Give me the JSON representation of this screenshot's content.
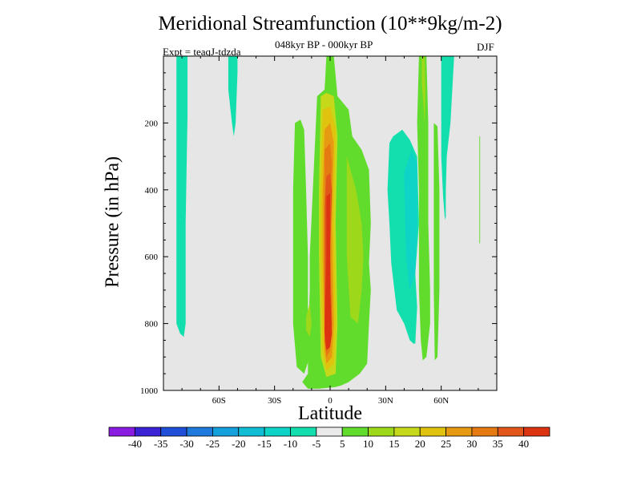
{
  "chart_data": {
    "type": "heatmap",
    "title": "Meridional Streamfunction (10**9kg/m-2)",
    "subtitle": "048kyr BP - 000kyr BP",
    "experiment": "Expt = teaqJ-tdzda",
    "season": "DJF",
    "xlabel": "Latitude",
    "ylabel": "Pressure (in hPa)",
    "xlim": [
      -90,
      90
    ],
    "ylim": [
      1000,
      0
    ],
    "x_ticks": [
      {
        "value": -60,
        "label": "60S"
      },
      {
        "value": -30,
        "label": "30S"
      },
      {
        "value": 0,
        "label": "0"
      },
      {
        "value": 30,
        "label": "30N"
      },
      {
        "value": 60,
        "label": "60N"
      }
    ],
    "y_ticks": [
      {
        "value": 200,
        "label": "200"
      },
      {
        "value": 400,
        "label": "400"
      },
      {
        "value": 600,
        "label": "600"
      },
      {
        "value": 800,
        "label": "800"
      },
      {
        "value": 1000,
        "label": "1000"
      }
    ],
    "background_color": "#e6e6e6",
    "colorbar": {
      "levels": [
        "-40",
        "-35",
        "-30",
        "-25",
        "-20",
        "-15",
        "-10",
        "-5",
        "5",
        "10",
        "15",
        "20",
        "25",
        "30",
        "35",
        "40"
      ],
      "colors": [
        "#8a1be0",
        "#3b22d4",
        "#1f4fd8",
        "#1d79dc",
        "#14a0dc",
        "#10bdd4",
        "#0ed3c7",
        "#13dfae",
        "#eaeaea",
        "#62dc2c",
        "#9ed81a",
        "#c6d81a",
        "#dfc30e",
        "#e59a12",
        "#e57a12",
        "#e2561a",
        "#dc3311"
      ]
    },
    "contour_regions": [
      {
        "level_index": 7,
        "polygon": [
          [
            -83,
            0
          ],
          [
            -77,
            0
          ],
          [
            -77,
            180
          ],
          [
            -78,
            500
          ],
          [
            -78,
            800
          ],
          [
            -79,
            840
          ],
          [
            -81,
            830
          ],
          [
            -83,
            800
          ],
          [
            -83,
            400
          ]
        ]
      },
      {
        "level_index": 7,
        "polygon": [
          [
            -55,
            0
          ],
          [
            -50,
            0
          ],
          [
            -50,
            50
          ],
          [
            -51,
            200
          ],
          [
            -52,
            240
          ],
          [
            -53,
            200
          ],
          [
            -55,
            100
          ]
        ]
      },
      {
        "level_index": 9,
        "polygon": [
          [
            -19,
            200
          ],
          [
            -16,
            190
          ],
          [
            -14,
            220
          ],
          [
            -13,
            400
          ],
          [
            -12,
            600
          ],
          [
            -12,
            800
          ],
          [
            -11,
            900
          ],
          [
            -14,
            950
          ],
          [
            -18,
            930
          ],
          [
            -20,
            800
          ],
          [
            -20,
            400
          ]
        ]
      },
      {
        "level_index": 9,
        "polygon": [
          [
            -2,
            0
          ],
          [
            2,
            0
          ],
          [
            4,
            120
          ],
          [
            10,
            160
          ],
          [
            12,
            240
          ],
          [
            17,
            280
          ],
          [
            21,
            340
          ],
          [
            22,
            500
          ],
          [
            21,
            620
          ],
          [
            22,
            700
          ],
          [
            21,
            800
          ],
          [
            20,
            920
          ],
          [
            16,
            950
          ],
          [
            10,
            975
          ],
          [
            6,
            985
          ],
          [
            3,
            990
          ],
          [
            -6,
            995
          ],
          [
            -12,
            995
          ],
          [
            -15,
            975
          ],
          [
            -12,
            950
          ],
          [
            -12,
            850
          ],
          [
            -11,
            700
          ],
          [
            -11,
            600
          ],
          [
            -7,
            120
          ],
          [
            -3,
            100
          ]
        ]
      },
      {
        "level_index": 10,
        "polygon": [
          [
            -13,
            780
          ],
          [
            -11,
            740
          ],
          [
            -10,
            800
          ],
          [
            -11,
            840
          ],
          [
            -13,
            820
          ]
        ]
      },
      {
        "level_index": 10,
        "polygon": [
          [
            9,
            300
          ],
          [
            14,
            400
          ],
          [
            17,
            500
          ],
          [
            18,
            600
          ],
          [
            17,
            700
          ],
          [
            15,
            800
          ],
          [
            11,
            780
          ],
          [
            9,
            600
          ]
        ]
      },
      {
        "level_index": 11,
        "polygon": [
          [
            -5,
            120
          ],
          [
            -2,
            110
          ],
          [
            2,
            120
          ],
          [
            4,
            240
          ],
          [
            3,
            500
          ],
          [
            4,
            800
          ],
          [
            3,
            950
          ],
          [
            -2,
            960
          ],
          [
            -5,
            900
          ],
          [
            -6,
            600
          ],
          [
            -6,
            400
          ]
        ]
      },
      {
        "level_index": 12,
        "polygon": [
          [
            -4,
            160
          ],
          [
            0,
            150
          ],
          [
            3,
            220
          ],
          [
            2,
            500
          ],
          [
            3,
            800
          ],
          [
            2,
            920
          ],
          [
            -2,
            940
          ],
          [
            -4,
            880
          ],
          [
            -5,
            600
          ],
          [
            -5,
            400
          ]
        ]
      },
      {
        "level_index": 13,
        "polygon": [
          [
            -3,
            220
          ],
          [
            0,
            200
          ],
          [
            2,
            260
          ],
          [
            1,
            500
          ],
          [
            2,
            800
          ],
          [
            1,
            900
          ],
          [
            -2,
            920
          ],
          [
            -3,
            880
          ],
          [
            -4,
            600
          ],
          [
            -4,
            400
          ]
        ]
      },
      {
        "level_index": 14,
        "polygon": [
          [
            -3,
            280
          ],
          [
            0,
            260
          ],
          [
            1,
            320
          ],
          [
            0,
            500
          ],
          [
            1,
            800
          ],
          [
            0,
            880
          ],
          [
            -2,
            900
          ],
          [
            -3,
            860
          ],
          [
            -3,
            600
          ],
          [
            -3,
            400
          ]
        ]
      },
      {
        "level_index": 15,
        "polygon": [
          [
            -2,
            360
          ],
          [
            0,
            350
          ],
          [
            1,
            400
          ],
          [
            0,
            600
          ],
          [
            1,
            800
          ],
          [
            0,
            860
          ],
          [
            -2,
            880
          ],
          [
            -3,
            850
          ],
          [
            -3,
            600
          ],
          [
            -3,
            450
          ]
        ]
      },
      {
        "level_index": 16,
        "polygon": [
          [
            -2,
            420
          ],
          [
            0,
            410
          ],
          [
            0,
            500
          ],
          [
            0,
            700
          ],
          [
            1,
            830
          ],
          [
            0,
            870
          ],
          [
            -2,
            880
          ],
          [
            -3,
            820
          ],
          [
            -2,
            600
          ]
        ]
      },
      {
        "level_index": 7,
        "polygon": [
          [
            32,
            260
          ],
          [
            34,
            240
          ],
          [
            39,
            220
          ],
          [
            43,
            250
          ],
          [
            47,
            300
          ],
          [
            48,
            500
          ],
          [
            46,
            650
          ],
          [
            47,
            750
          ],
          [
            46,
            860
          ],
          [
            45,
            860
          ],
          [
            43,
            850
          ],
          [
            40,
            800
          ],
          [
            36,
            760
          ],
          [
            33,
            620
          ],
          [
            32,
            500
          ],
          [
            31,
            400
          ]
        ]
      },
      {
        "level_index": 6,
        "polygon": [
          [
            40,
            350
          ],
          [
            44,
            280
          ],
          [
            47,
            320
          ],
          [
            47,
            500
          ],
          [
            46,
            650
          ],
          [
            43,
            700
          ],
          [
            41,
            600
          ]
        ]
      },
      {
        "level_index": 9,
        "polygon": [
          [
            48,
            0
          ],
          [
            52,
            0
          ],
          [
            53,
            200
          ],
          [
            53,
            500
          ],
          [
            54,
            700
          ],
          [
            54,
            800
          ],
          [
            53,
            850
          ],
          [
            52,
            900
          ],
          [
            50,
            910
          ],
          [
            49,
            850
          ],
          [
            48,
            700
          ],
          [
            48,
            400
          ],
          [
            47,
            200
          ]
        ]
      },
      {
        "level_index": 10,
        "polygon": [
          [
            49.5,
            0
          ],
          [
            51,
            0
          ],
          [
            51.5,
            100
          ],
          [
            51,
            200
          ],
          [
            50.5,
            150
          ],
          [
            49.5,
            80
          ]
        ]
      },
      {
        "level_index": 9,
        "polygon": [
          [
            56,
            200
          ],
          [
            58,
            210
          ],
          [
            59,
            400
          ],
          [
            59,
            700
          ],
          [
            58,
            900
          ],
          [
            56.5,
            910
          ],
          [
            56,
            700
          ],
          [
            56,
            400
          ]
        ]
      },
      {
        "level_index": 7,
        "polygon": [
          [
            60,
            0
          ],
          [
            67,
            0
          ],
          [
            66,
            100
          ],
          [
            65,
            200
          ],
          [
            63,
            300
          ],
          [
            62.5,
            400
          ],
          [
            62.5,
            480
          ],
          [
            62,
            490
          ],
          [
            61,
            420
          ],
          [
            60,
            300
          ],
          [
            60,
            100
          ]
        ]
      },
      {
        "level_index": 9,
        "polygon": [
          [
            80.6,
            240
          ],
          [
            81,
            240
          ],
          [
            81,
            560
          ],
          [
            80.6,
            560
          ]
        ]
      }
    ]
  }
}
